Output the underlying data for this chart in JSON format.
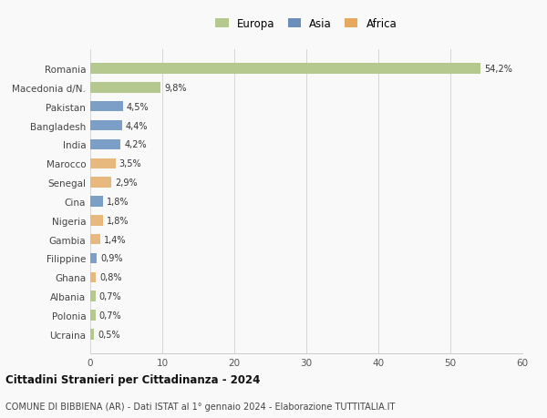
{
  "countries": [
    "Romania",
    "Macedonia d/N.",
    "Pakistan",
    "Bangladesh",
    "India",
    "Marocco",
    "Senegal",
    "Cina",
    "Nigeria",
    "Gambia",
    "Filippine",
    "Ghana",
    "Albania",
    "Polonia",
    "Ucraina"
  ],
  "values": [
    54.2,
    9.8,
    4.5,
    4.4,
    4.2,
    3.5,
    2.9,
    1.8,
    1.8,
    1.4,
    0.9,
    0.8,
    0.7,
    0.7,
    0.5
  ],
  "continents": [
    "Europa",
    "Europa",
    "Asia",
    "Asia",
    "Asia",
    "Africa",
    "Africa",
    "Asia",
    "Africa",
    "Africa",
    "Asia",
    "Africa",
    "Europa",
    "Europa",
    "Europa"
  ],
  "colors": {
    "Europa": "#b5c98e",
    "Asia": "#7b9fc7",
    "Africa": "#e8b97e"
  },
  "legend_colors": {
    "Europa": "#b5c98e",
    "Asia": "#6b8fba",
    "Africa": "#e8a85e"
  },
  "title": "Cittadini Stranieri per Cittadinanza - 2024",
  "subtitle": "COMUNE DI BIBBIENA (AR) - Dati ISTAT al 1° gennaio 2024 - Elaborazione TUTTITALIA.IT",
  "xlim": [
    0,
    60
  ],
  "xticks": [
    0,
    10,
    20,
    30,
    40,
    50,
    60
  ],
  "background_color": "#f9f9f9",
  "bar_height": 0.55
}
